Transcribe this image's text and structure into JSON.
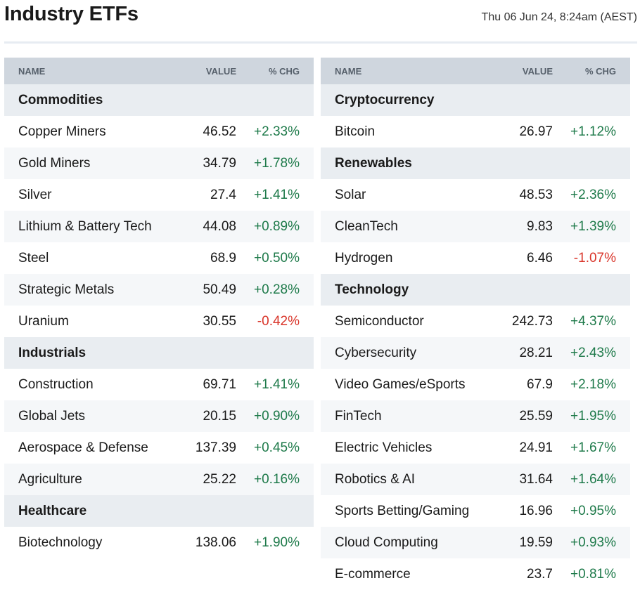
{
  "header": {
    "title": "Industry ETFs",
    "timestamp": "Thu 06 Jun 24, 8:24am (AEST)"
  },
  "columns": {
    "name": "NAME",
    "value": "VALUE",
    "chg": "% CHG"
  },
  "colors": {
    "positive": "#1e7a4a",
    "negative": "#d9352a",
    "header_bg": "#cfd6de",
    "group_bg": "#e9edf1"
  },
  "left_table": [
    {
      "type": "group",
      "name": "Commodities"
    },
    {
      "type": "item",
      "name": "Copper Miners",
      "value": "46.52",
      "chg": "+2.33%"
    },
    {
      "type": "item",
      "name": "Gold Miners",
      "value": "34.79",
      "chg": "+1.78%"
    },
    {
      "type": "item",
      "name": "Silver",
      "value": "27.4",
      "chg": "+1.41%"
    },
    {
      "type": "item",
      "name": "Lithium & Battery Tech",
      "value": "44.08",
      "chg": "+0.89%"
    },
    {
      "type": "item",
      "name": "Steel",
      "value": "68.9",
      "chg": "+0.50%"
    },
    {
      "type": "item",
      "name": "Strategic Metals",
      "value": "50.49",
      "chg": "+0.28%"
    },
    {
      "type": "item",
      "name": "Uranium",
      "value": "30.55",
      "chg": "-0.42%"
    },
    {
      "type": "group",
      "name": "Industrials"
    },
    {
      "type": "item",
      "name": "Construction",
      "value": "69.71",
      "chg": "+1.41%"
    },
    {
      "type": "item",
      "name": "Global Jets",
      "value": "20.15",
      "chg": "+0.90%"
    },
    {
      "type": "item",
      "name": "Aerospace & Defense",
      "value": "137.39",
      "chg": "+0.45%"
    },
    {
      "type": "item",
      "name": "Agriculture",
      "value": "25.22",
      "chg": "+0.16%"
    },
    {
      "type": "group",
      "name": "Healthcare"
    },
    {
      "type": "item",
      "name": "Biotechnology",
      "value": "138.06",
      "chg": "+1.90%"
    }
  ],
  "right_table": [
    {
      "type": "group",
      "name": "Cryptocurrency"
    },
    {
      "type": "item",
      "name": "Bitcoin",
      "value": "26.97",
      "chg": "+1.12%"
    },
    {
      "type": "group",
      "name": "Renewables"
    },
    {
      "type": "item",
      "name": "Solar",
      "value": "48.53",
      "chg": "+2.36%"
    },
    {
      "type": "item",
      "name": "CleanTech",
      "value": "9.83",
      "chg": "+1.39%"
    },
    {
      "type": "item",
      "name": "Hydrogen",
      "value": "6.46",
      "chg": "-1.07%"
    },
    {
      "type": "group",
      "name": "Technology"
    },
    {
      "type": "item",
      "name": "Semiconductor",
      "value": "242.73",
      "chg": "+4.37%"
    },
    {
      "type": "item",
      "name": "Cybersecurity",
      "value": "28.21",
      "chg": "+2.43%"
    },
    {
      "type": "item",
      "name": "Video Games/eSports",
      "value": "67.9",
      "chg": "+2.18%"
    },
    {
      "type": "item",
      "name": "FinTech",
      "value": "25.59",
      "chg": "+1.95%"
    },
    {
      "type": "item",
      "name": "Electric Vehicles",
      "value": "24.91",
      "chg": "+1.67%"
    },
    {
      "type": "item",
      "name": "Robotics & AI",
      "value": "31.64",
      "chg": "+1.64%"
    },
    {
      "type": "item",
      "name": "Sports Betting/Gaming",
      "value": "16.96",
      "chg": "+0.95%"
    },
    {
      "type": "item",
      "name": "Cloud Computing",
      "value": "19.59",
      "chg": "+0.93%"
    },
    {
      "type": "item",
      "name": "E-commerce",
      "value": "23.7",
      "chg": "+0.81%"
    }
  ]
}
